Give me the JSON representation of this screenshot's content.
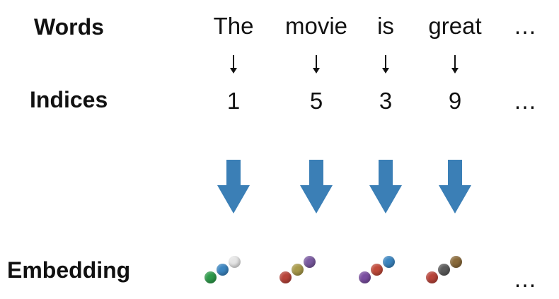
{
  "labels": {
    "words": "Words",
    "indices": "Indices",
    "embedding": "Embedding"
  },
  "tokens": [
    {
      "word": "The",
      "index": "1",
      "dots": [
        "#2e9a4a",
        "#3b85c0",
        "#e6e6e6"
      ]
    },
    {
      "word": "movie",
      "index": "5",
      "dots": [
        "#b8443a",
        "#a89a4a",
        "#7a5aa0"
      ]
    },
    {
      "word": "is",
      "index": "3",
      "dots": [
        "#7a4ea0",
        "#c04a3a",
        "#3b85c0"
      ]
    },
    {
      "word": "great",
      "index": "9",
      "dots": [
        "#b8443a",
        "#5a5a5a",
        "#8a6a3a"
      ]
    }
  ],
  "ellipsis": "…",
  "colors": {
    "big_arrow": "#3b7fb6"
  }
}
